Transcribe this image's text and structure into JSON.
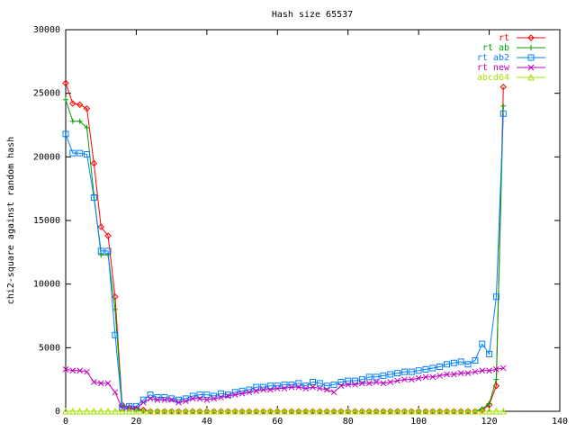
{
  "chart_data": {
    "type": "line",
    "title": "Hash size 65537",
    "y_label": "chi2-square against random hash",
    "x": [
      0,
      2,
      4,
      6,
      8,
      10,
      12,
      14,
      16,
      18,
      20,
      22,
      24,
      26,
      28,
      30,
      32,
      34,
      36,
      38,
      40,
      42,
      44,
      46,
      48,
      50,
      52,
      54,
      56,
      58,
      60,
      62,
      64,
      66,
      68,
      70,
      72,
      74,
      76,
      78,
      80,
      82,
      84,
      86,
      88,
      90,
      92,
      94,
      96,
      98,
      100,
      102,
      104,
      106,
      108,
      110,
      112,
      114,
      116,
      118,
      120,
      122,
      124
    ],
    "xlim": [
      0,
      140
    ],
    "xticks": [
      0,
      20,
      40,
      60,
      80,
      100,
      120,
      140
    ],
    "ylim": [
      0,
      30000
    ],
    "yticks": [
      0,
      5000,
      10000,
      15000,
      20000,
      25000,
      30000
    ],
    "grid": false,
    "legend": "top-right",
    "series": [
      {
        "name": "rt",
        "color": "#ff0000",
        "marker": "diamond",
        "values": [
          25800,
          24200,
          24100,
          23800,
          19500,
          14500,
          13800,
          9000,
          500,
          300,
          200,
          100,
          0,
          0,
          0,
          0,
          0,
          0,
          0,
          0,
          0,
          0,
          0,
          0,
          0,
          0,
          0,
          0,
          0,
          0,
          0,
          0,
          0,
          0,
          0,
          0,
          0,
          0,
          0,
          0,
          0,
          0,
          0,
          0,
          0,
          0,
          0,
          0,
          0,
          0,
          0,
          0,
          0,
          0,
          0,
          0,
          0,
          0,
          0,
          100,
          500,
          2000,
          25500
        ]
      },
      {
        "name": "rt ab",
        "color": "#00a000",
        "marker": "plus",
        "values": [
          24500,
          22800,
          22800,
          22300,
          17000,
          12300,
          12300,
          8000,
          400,
          200,
          100,
          50,
          0,
          0,
          0,
          0,
          0,
          0,
          0,
          0,
          0,
          0,
          0,
          0,
          0,
          0,
          0,
          0,
          0,
          0,
          0,
          0,
          0,
          0,
          0,
          0,
          0,
          0,
          0,
          0,
          0,
          0,
          0,
          0,
          0,
          0,
          0,
          0,
          0,
          0,
          0,
          0,
          0,
          0,
          0,
          0,
          0,
          0,
          0,
          200,
          600,
          2500,
          24000
        ]
      },
      {
        "name": "rt ab2",
        "color": "#0080ff",
        "marker": "square",
        "values": [
          21800,
          20300,
          20300,
          20200,
          16800,
          12600,
          12600,
          6000,
          300,
          400,
          400,
          900,
          1300,
          1100,
          1100,
          1000,
          900,
          1000,
          1200,
          1300,
          1300,
          1200,
          1400,
          1300,
          1500,
          1600,
          1700,
          1900,
          1900,
          2000,
          2000,
          2100,
          2100,
          2200,
          2000,
          2300,
          2200,
          2000,
          2100,
          2300,
          2400,
          2400,
          2500,
          2700,
          2700,
          2800,
          2900,
          3000,
          3100,
          3100,
          3200,
          3300,
          3400,
          3500,
          3700,
          3800,
          3900,
          3700,
          4000,
          5300,
          4500,
          9000,
          23400
        ]
      },
      {
        "name": "rt new",
        "color": "#c000c0",
        "marker": "cross",
        "values": [
          3300,
          3200,
          3200,
          3100,
          2300,
          2200,
          2200,
          1500,
          200,
          200,
          200,
          700,
          1000,
          900,
          900,
          900,
          700,
          800,
          1000,
          1000,
          900,
          1000,
          1100,
          1200,
          1300,
          1400,
          1500,
          1600,
          1700,
          1700,
          1800,
          1800,
          1900,
          1900,
          1800,
          1900,
          1800,
          1700,
          1500,
          2000,
          2100,
          2100,
          2200,
          2200,
          2300,
          2200,
          2300,
          2400,
          2500,
          2500,
          2600,
          2700,
          2700,
          2800,
          2900,
          2900,
          3000,
          3000,
          3100,
          3200,
          3200,
          3300,
          3400
        ]
      },
      {
        "name": "abcd64",
        "color": "#a0e000",
        "marker": "triangle",
        "values": [
          0,
          0,
          0,
          0,
          0,
          0,
          0,
          0,
          0,
          0,
          0,
          0,
          0,
          0,
          0,
          0,
          0,
          0,
          0,
          0,
          0,
          0,
          0,
          0,
          0,
          0,
          0,
          0,
          0,
          0,
          0,
          0,
          0,
          0,
          0,
          0,
          0,
          0,
          0,
          0,
          0,
          0,
          0,
          0,
          0,
          0,
          0,
          0,
          0,
          0,
          0,
          0,
          0,
          0,
          0,
          0,
          0,
          0,
          0,
          0,
          0,
          0,
          0
        ]
      }
    ]
  }
}
